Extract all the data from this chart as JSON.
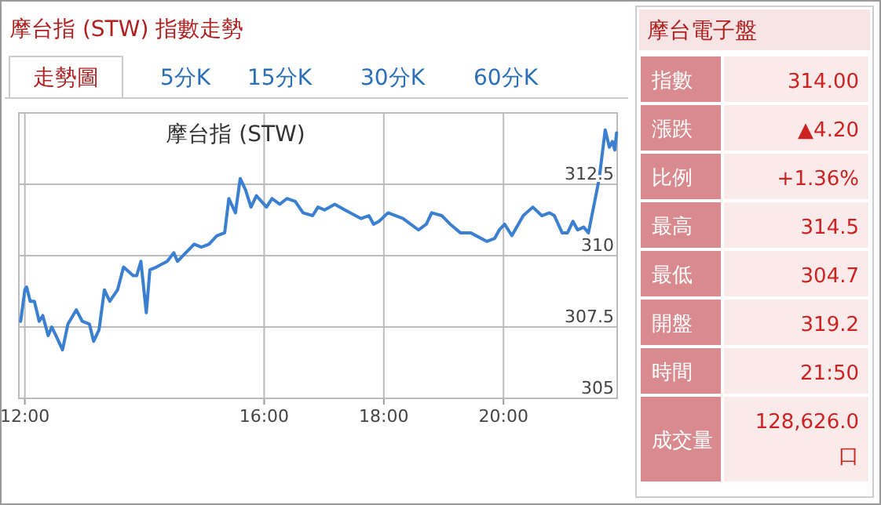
{
  "chart_data": [
    {
      "type": "line",
      "title": "摩台指 (STW) 指數走勢",
      "subtitle": "摩台指 (STW)",
      "annotations": [
        "走勢圖",
        "5分K",
        "15分K",
        "30分K",
        "60分K"
      ],
      "xlim": [
        11.9,
        21.9
      ],
      "xticks": [
        {
          "value": 12,
          "label": "12:00"
        },
        {
          "value": 16,
          "label": "16:00"
        },
        {
          "value": 18,
          "label": "18:00"
        },
        {
          "value": 20,
          "label": "20:00"
        }
      ],
      "ylim": [
        305,
        315
      ],
      "yticks": [
        305,
        307.5,
        310,
        312.5
      ],
      "grid": true,
      "marker": "none",
      "line_style": "solid",
      "series": [
        {
          "color": "#3a7fd0",
          "x": [
            11.93,
            12.0,
            12.03,
            12.09,
            12.16,
            12.24,
            12.3,
            12.39,
            12.45,
            12.52,
            12.63,
            12.72,
            12.86,
            12.96,
            13.08,
            13.15,
            13.24,
            13.33,
            13.42,
            13.55,
            13.65,
            13.81,
            13.87,
            13.94,
            14.03,
            14.09,
            14.2,
            14.38,
            14.49,
            14.55,
            14.69,
            14.83,
            14.95,
            15.08,
            15.21,
            15.34,
            15.41,
            15.52,
            15.6,
            15.69,
            15.78,
            15.87,
            16.04,
            16.13,
            16.26,
            16.38,
            16.52,
            16.65,
            16.81,
            16.9,
            17.01,
            17.18,
            17.35,
            17.62,
            17.75,
            17.83,
            17.92,
            18.07,
            18.32,
            18.58,
            18.71,
            18.8,
            18.97,
            19.11,
            19.28,
            19.45,
            19.72,
            19.85,
            19.93,
            20.02,
            20.14,
            20.33,
            20.49,
            20.64,
            20.77,
            20.85,
            20.98,
            21.07,
            21.16,
            21.24,
            21.34,
            21.42,
            21.6,
            21.7,
            21.77,
            21.82,
            21.86,
            21.89
          ],
          "values": [
            307.7,
            308.8,
            308.9,
            308.4,
            308.4,
            307.7,
            307.9,
            307.2,
            307.5,
            307.2,
            306.7,
            307.6,
            308.1,
            307.7,
            307.6,
            307.0,
            307.4,
            308.8,
            308.4,
            308.8,
            309.6,
            309.3,
            309.3,
            309.8,
            308.0,
            309.5,
            309.6,
            309.8,
            310.1,
            309.8,
            310.1,
            310.4,
            310.3,
            310.4,
            310.7,
            310.8,
            312.0,
            311.5,
            312.7,
            312.3,
            311.7,
            312.1,
            311.7,
            312.0,
            311.8,
            312.0,
            311.9,
            311.5,
            311.4,
            311.7,
            311.6,
            311.8,
            311.6,
            311.3,
            311.4,
            311.1,
            311.2,
            311.5,
            311.3,
            310.9,
            311.1,
            311.5,
            311.4,
            311.1,
            310.8,
            310.8,
            310.5,
            310.6,
            310.9,
            311.1,
            310.7,
            311.4,
            311.7,
            311.4,
            311.5,
            311.4,
            310.8,
            310.8,
            311.2,
            310.9,
            311.0,
            310.8,
            312.7,
            314.4,
            313.8,
            314.0,
            313.7,
            314.3
          ]
        }
      ]
    },
    {
      "type": "other",
      "title": "摩台電子盤",
      "categories": [
        "指數",
        "漲跌",
        "比例",
        "最高",
        "最低",
        "開盤",
        "時間",
        "成交量"
      ],
      "annotations": [
        "314.00",
        "▲4.20",
        "+1.36%",
        "314.5",
        "304.7",
        "319.2",
        "21:50",
        "128,626.0\n口"
      ]
    }
  ]
}
